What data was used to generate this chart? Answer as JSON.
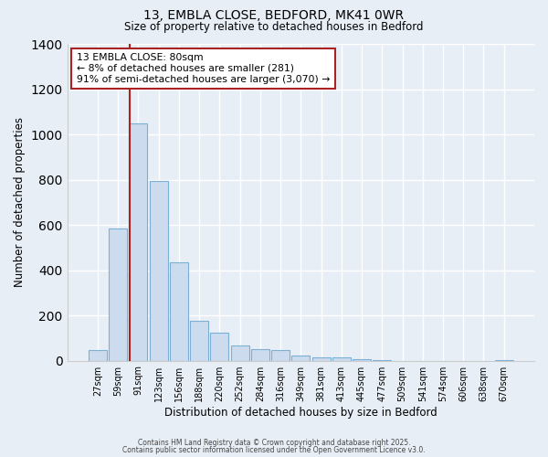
{
  "title_line1": "13, EMBLA CLOSE, BEDFORD, MK41 0WR",
  "title_line2": "Size of property relative to detached houses in Bedford",
  "xlabel": "Distribution of detached houses by size in Bedford",
  "ylabel": "Number of detached properties",
  "bar_color": "#ccdcee",
  "bar_edge_color": "#7bafd4",
  "background_color": "#e8eef6",
  "plot_bg_color": "#e8eef6",
  "grid_color": "#ffffff",
  "categories": [
    "27sqm",
    "59sqm",
    "91sqm",
    "123sqm",
    "156sqm",
    "188sqm",
    "220sqm",
    "252sqm",
    "284sqm",
    "316sqm",
    "349sqm",
    "381sqm",
    "413sqm",
    "445sqm",
    "477sqm",
    "509sqm",
    "541sqm",
    "574sqm",
    "606sqm",
    "638sqm",
    "670sqm"
  ],
  "values": [
    47,
    585,
    1047,
    795,
    435,
    178,
    123,
    68,
    52,
    48,
    22,
    13,
    13,
    5,
    2,
    0,
    0,
    0,
    0,
    0,
    2
  ],
  "ylim": [
    0,
    1400
  ],
  "yticks": [
    0,
    200,
    400,
    600,
    800,
    1000,
    1200,
    1400
  ],
  "vline_color": "#aa2222",
  "annotation_text": "13 EMBLA CLOSE: 80sqm\n← 8% of detached houses are smaller (281)\n91% of semi-detached houses are larger (3,070) →",
  "annotation_box_color": "#ffffff",
  "annotation_box_edge": "#aa2222",
  "footer_line1": "Contains HM Land Registry data © Crown copyright and database right 2025.",
  "footer_line2": "Contains public sector information licensed under the Open Government Licence v3.0."
}
